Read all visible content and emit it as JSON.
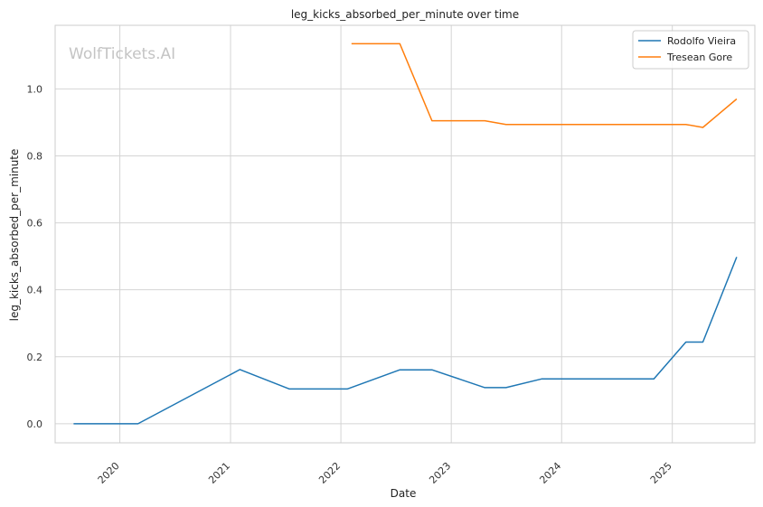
{
  "chart_data": {
    "type": "line",
    "title": "leg_kicks_absorbed_per_minute over time",
    "xlabel": "Date",
    "ylabel": "leg_kicks_absorbed_per_minute",
    "watermark": "WolfTickets.AI",
    "x_ticks": [
      "2020",
      "2021",
      "2022",
      "2023",
      "2024",
      "2025"
    ],
    "y_ticks": [
      "0.0",
      "0.2",
      "0.4",
      "0.6",
      "0.8",
      "1.0"
    ],
    "xlim": [
      "2019-06-01",
      "2025-10-01"
    ],
    "ylim": [
      -0.057,
      1.19
    ],
    "grid": true,
    "legend_position": "top-right",
    "series": [
      {
        "name": "Rodolfo Vieira",
        "color": "#1f77b4",
        "points": [
          [
            "2019-08-01",
            0.0
          ],
          [
            "2020-03-01",
            0.0
          ],
          [
            "2021-02-01",
            0.162
          ],
          [
            "2021-07-15",
            0.104
          ],
          [
            "2022-01-22",
            0.104
          ],
          [
            "2022-07-15",
            0.161
          ],
          [
            "2022-10-29",
            0.161
          ],
          [
            "2023-04-22",
            0.108
          ],
          [
            "2023-07-01",
            0.108
          ],
          [
            "2023-10-28",
            0.134
          ],
          [
            "2024-11-01",
            0.134
          ],
          [
            "2025-02-15",
            0.244
          ],
          [
            "2025-04-12",
            0.244
          ],
          [
            "2025-08-02",
            0.498
          ]
        ]
      },
      {
        "name": "Tresean Gore",
        "color": "#ff7f0e",
        "points": [
          [
            "2022-02-05",
            1.135
          ],
          [
            "2022-07-15",
            1.135
          ],
          [
            "2022-10-29",
            0.905
          ],
          [
            "2023-04-22",
            0.905
          ],
          [
            "2023-07-01",
            0.894
          ],
          [
            "2024-11-01",
            0.894
          ],
          [
            "2025-02-15",
            0.894
          ],
          [
            "2025-04-12",
            0.885
          ],
          [
            "2025-08-02",
            0.97
          ]
        ]
      }
    ]
  }
}
